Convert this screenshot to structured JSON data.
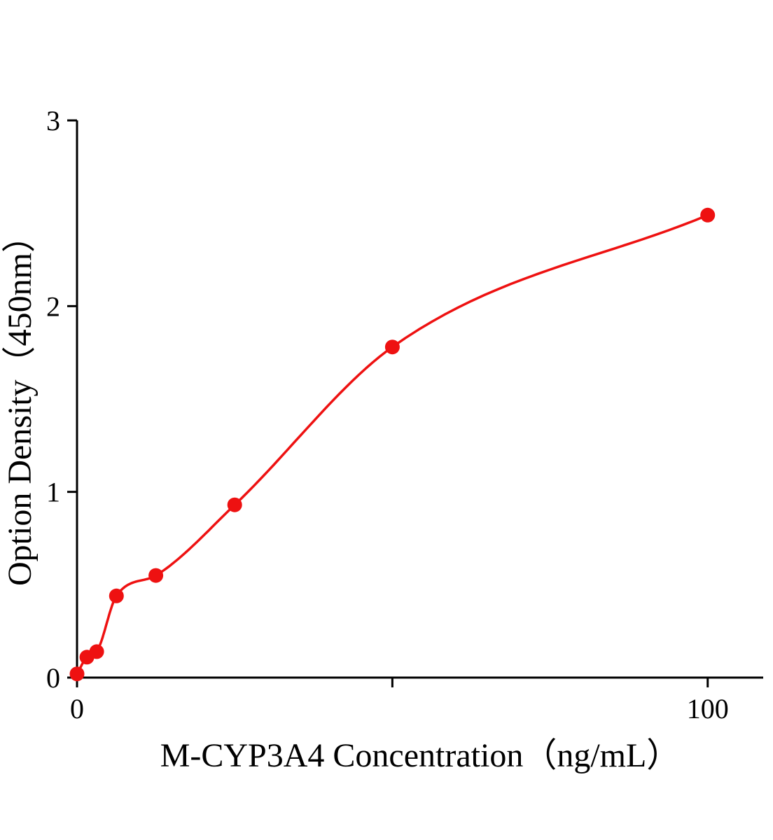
{
  "chart_data": {
    "type": "scatter",
    "title": "",
    "xlabel": "M-CYP3A4 Concentration（ng/mL）",
    "ylabel": "Option Density（450nm）",
    "x": [
      0,
      1.56,
      3.125,
      6.25,
      12.5,
      25,
      50,
      100
    ],
    "y": [
      0.02,
      0.11,
      0.14,
      0.44,
      0.55,
      0.93,
      1.78,
      2.49
    ],
    "xlim": [
      0,
      108.8
    ],
    "ylim": [
      0,
      3
    ],
    "x_ticks": [
      {
        "value": 0,
        "label": "0"
      },
      {
        "value": 50,
        "label": ""
      },
      {
        "value": 100,
        "label": "100"
      }
    ],
    "y_ticks": [
      {
        "value": 0,
        "label": "0"
      },
      {
        "value": 1,
        "label": "1"
      },
      {
        "value": 2,
        "label": "2"
      },
      {
        "value": 3,
        "label": "3"
      }
    ],
    "grid": false,
    "legend": "none",
    "has_fit_curve": true,
    "marker_color": "#ee1111",
    "line_color": "#ee1111",
    "axis_color": "#000000",
    "marker_radius": 10.5,
    "line_width": 3.5
  }
}
